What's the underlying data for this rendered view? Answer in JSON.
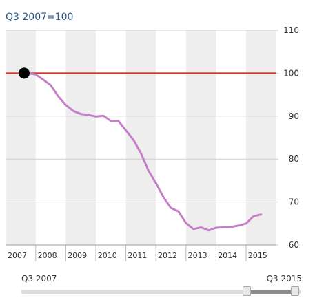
{
  "chart_data": {
    "type": "line",
    "ylabel": "Q3 2007=100",
    "ylim": [
      60,
      110
    ],
    "y_ticks": [
      "110",
      "100",
      "90",
      "80",
      "70",
      "60"
    ],
    "x_ticks": [
      "2007",
      "2008",
      "2009",
      "2010",
      "2011",
      "2012",
      "2013",
      "2014",
      "2015"
    ],
    "reference_line": 100,
    "marker": {
      "label": "Q3 2007",
      "value": 100
    },
    "grid": true,
    "series": [
      {
        "color": "#c57fc8",
        "x": [
          "2007 Q3",
          "2007 Q4",
          "2008 Q1",
          "2008 Q2",
          "2008 Q3",
          "2008 Q4",
          "2009 Q1",
          "2009 Q2",
          "2009 Q3",
          "2009 Q4",
          "2010 Q1",
          "2010 Q2",
          "2010 Q3",
          "2010 Q4",
          "2011 Q1",
          "2011 Q2",
          "2011 Q3",
          "2011 Q4",
          "2012 Q1",
          "2012 Q2",
          "2012 Q3",
          "2012 Q4",
          "2013 Q1",
          "2013 Q2",
          "2013 Q3",
          "2013 Q4",
          "2014 Q1",
          "2014 Q2",
          "2014 Q3",
          "2014 Q4",
          "2015 Q1",
          "2015 Q2",
          "2015 Q3"
        ],
        "values": [
          100,
          100,
          99.7,
          98.5,
          97.2,
          94.6,
          92.6,
          91.2,
          90.5,
          90.3,
          89.9,
          90.1,
          88.9,
          88.9,
          86.7,
          84.5,
          81.4,
          77.3,
          74.4,
          71.1,
          68.6,
          67.8,
          65.1,
          63.7,
          64.1,
          63.4,
          64.0,
          64.1,
          64.2,
          64.5,
          65.0,
          66.7,
          67.1
        ]
      }
    ]
  },
  "slider": {
    "min_label": "Q3 2007",
    "max_label": "Q3 2015"
  },
  "colors": {
    "series": "#c57fc8",
    "reference": "#e8241c",
    "band": "#eeeeee",
    "marker": "#000000",
    "ylabel": "#2a5a8a"
  }
}
